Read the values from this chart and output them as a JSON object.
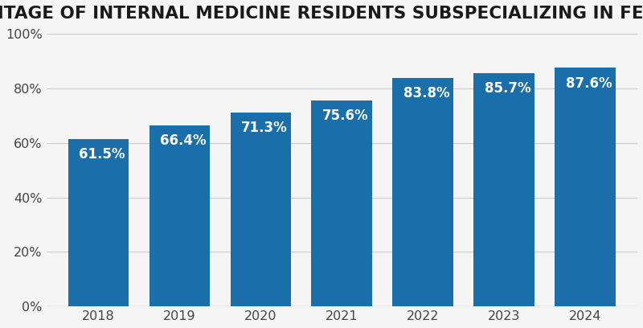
{
  "title": "PERCENTAGE OF INTERNAL MEDICINE RESIDENTS SUBSPECIALIZING IN FELLOWSHIPS",
  "categories": [
    "2018",
    "2019",
    "2020",
    "2021",
    "2022",
    "2023",
    "2024"
  ],
  "values": [
    61.5,
    66.4,
    71.3,
    75.6,
    83.8,
    85.7,
    87.6
  ],
  "bar_color": "#1a6faa",
  "label_color": "#ffffff",
  "background_color": "#f5f5f5",
  "title_color": "#1a1a1a",
  "tick_color": "#444444",
  "grid_color": "#cccccc",
  "ylim": [
    0,
    100
  ],
  "yticks": [
    0,
    20,
    40,
    60,
    80,
    100
  ],
  "title_fontsize": 15.5,
  "label_fontsize": 12.0,
  "tick_fontsize": 11.5,
  "bar_width": 0.75
}
